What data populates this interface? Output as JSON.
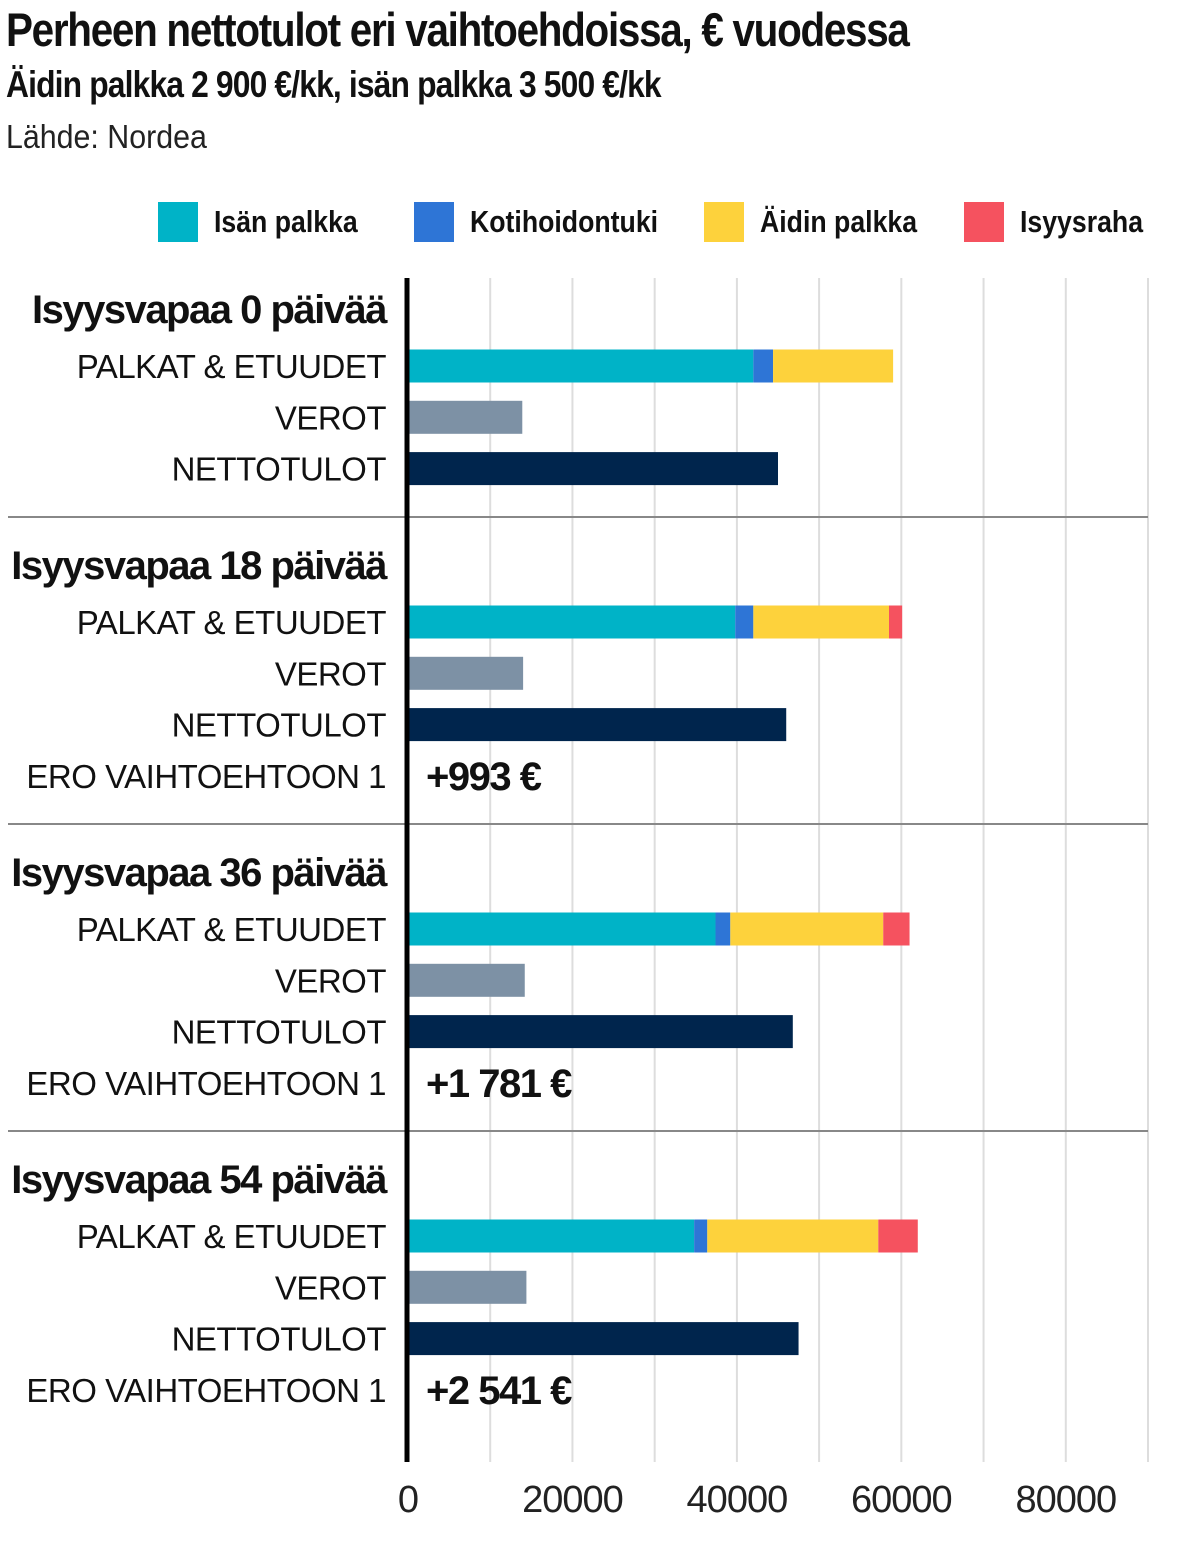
{
  "header": {
    "title": "Perheen nettotulot eri vaihtoehdoissa, € vuodessa",
    "subtitle": "Äidin palkka 2 900 €/kk, isän palkka 3 500 €/kk",
    "source": "Lähde: Nordea"
  },
  "legend": [
    {
      "label": "Isän palkka",
      "color": "#00b3c7"
    },
    {
      "label": "Kotihoidontuki",
      "color": "#2e75d6"
    },
    {
      "label": "Äidin palkka",
      "color": "#fdd23c"
    },
    {
      "label": "Isyysraha",
      "color": "#f5525f"
    }
  ],
  "colors": {
    "taxes": "#7d91a5",
    "net": "#00254d",
    "axis": "#000000",
    "grid": "#dddddd",
    "divider": "#888888"
  },
  "chart_data": {
    "type": "bar",
    "orientation": "horizontal",
    "xlim": [
      0,
      90000
    ],
    "xticks": [
      0,
      20000,
      40000,
      60000,
      80000
    ],
    "xtick_labels": [
      "0",
      "20000",
      "40000",
      "60000",
      "80000"
    ],
    "grid": true,
    "legend_position": "top",
    "row_labels": {
      "income": "PALKAT & ETUUDET",
      "taxes": "VEROT",
      "net": "NETTOTULOT",
      "diff": "ERO VAIHTOEHTOON 1"
    },
    "groups": [
      {
        "label": "Isyysvapaa 0 päivää",
        "income": {
          "Isän palkka": 42000,
          "Kotihoidontuki": 2400,
          "Äidin palkka": 14600,
          "Isyysraha": 0
        },
        "taxes": 13900,
        "net": 45000,
        "diff_label": ""
      },
      {
        "label": "Isyysvapaa 18 päivää",
        "income": {
          "Isän palkka": 39800,
          "Kotihoidontuki": 2200,
          "Äidin palkka": 16500,
          "Isyysraha": 1600
        },
        "taxes": 14000,
        "net": 46000,
        "diff_label": "+993 €"
      },
      {
        "label": "Isyysvapaa 36 päivää",
        "income": {
          "Isän palkka": 37400,
          "Kotihoidontuki": 1800,
          "Äidin palkka": 18600,
          "Isyysraha": 3200
        },
        "taxes": 14200,
        "net": 46800,
        "diff_label": "+1 781 €"
      },
      {
        "label": "Isyysvapaa 54 päivää",
        "income": {
          "Isän palkka": 34800,
          "Kotihoidontuki": 1600,
          "Äidin palkka": 20800,
          "Isyysraha": 4800
        },
        "taxes": 14400,
        "net": 47500,
        "diff_label": "+2 541 €"
      }
    ]
  }
}
